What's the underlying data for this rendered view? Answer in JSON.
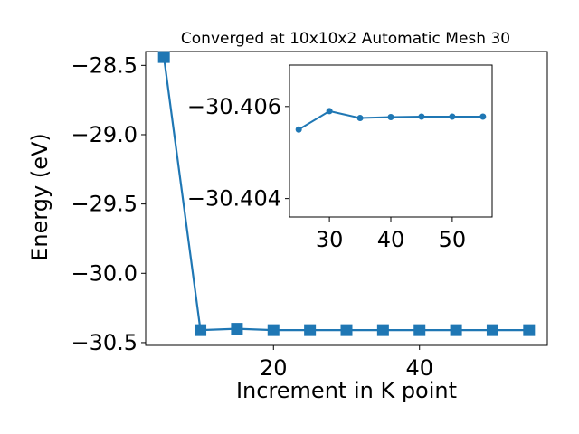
{
  "chart_data": [
    {
      "type": "line",
      "title": "Converged at 10x10x2 Automatic Mesh 30",
      "xlabel": "Increment in K point",
      "ylabel": "Energy (eV)",
      "xlim": [
        2.5,
        57.5
      ],
      "ylim": [
        -30.52,
        -28.4
      ],
      "xticks": [
        20,
        40
      ],
      "xtick_labels": [
        "20",
        "40"
      ],
      "yticks": [
        -28.5,
        -29.0,
        -29.5,
        -30.0,
        -30.5
      ],
      "ytick_labels": [
        "−28.5",
        "−29.0",
        "−29.5",
        "−30.0",
        "−30.5"
      ],
      "marker": "square",
      "color": "#1f77b4",
      "series": [
        {
          "x": [
            5,
            10,
            15,
            20,
            25,
            30,
            35,
            40,
            45,
            50,
            55
          ],
          "y": [
            -28.44,
            -30.41,
            -30.4,
            -30.41,
            -30.41,
            -30.41,
            -30.41,
            -30.41,
            -30.41,
            -30.41,
            -30.41
          ]
        }
      ]
    },
    {
      "type": "line",
      "title": "",
      "xlabel": "",
      "ylabel": "",
      "inverted_y": true,
      "xlim": [
        23.5,
        56.5
      ],
      "ylim": [
        -30.4036,
        -30.4069
      ],
      "xticks": [
        30,
        40,
        50
      ],
      "xtick_labels": [
        "30",
        "40",
        "50"
      ],
      "yticks": [
        -30.406,
        -30.404
      ],
      "ytick_labels": [
        "−30.406",
        "−30.404"
      ],
      "marker": "circle",
      "color": "#1f77b4",
      "series": [
        {
          "x": [
            25,
            30,
            35,
            40,
            45,
            50,
            55
          ],
          "y": [
            -30.4055,
            -30.4059,
            -30.40575,
            -30.40577,
            -30.40578,
            -30.40578,
            -30.40578
          ]
        }
      ]
    }
  ]
}
